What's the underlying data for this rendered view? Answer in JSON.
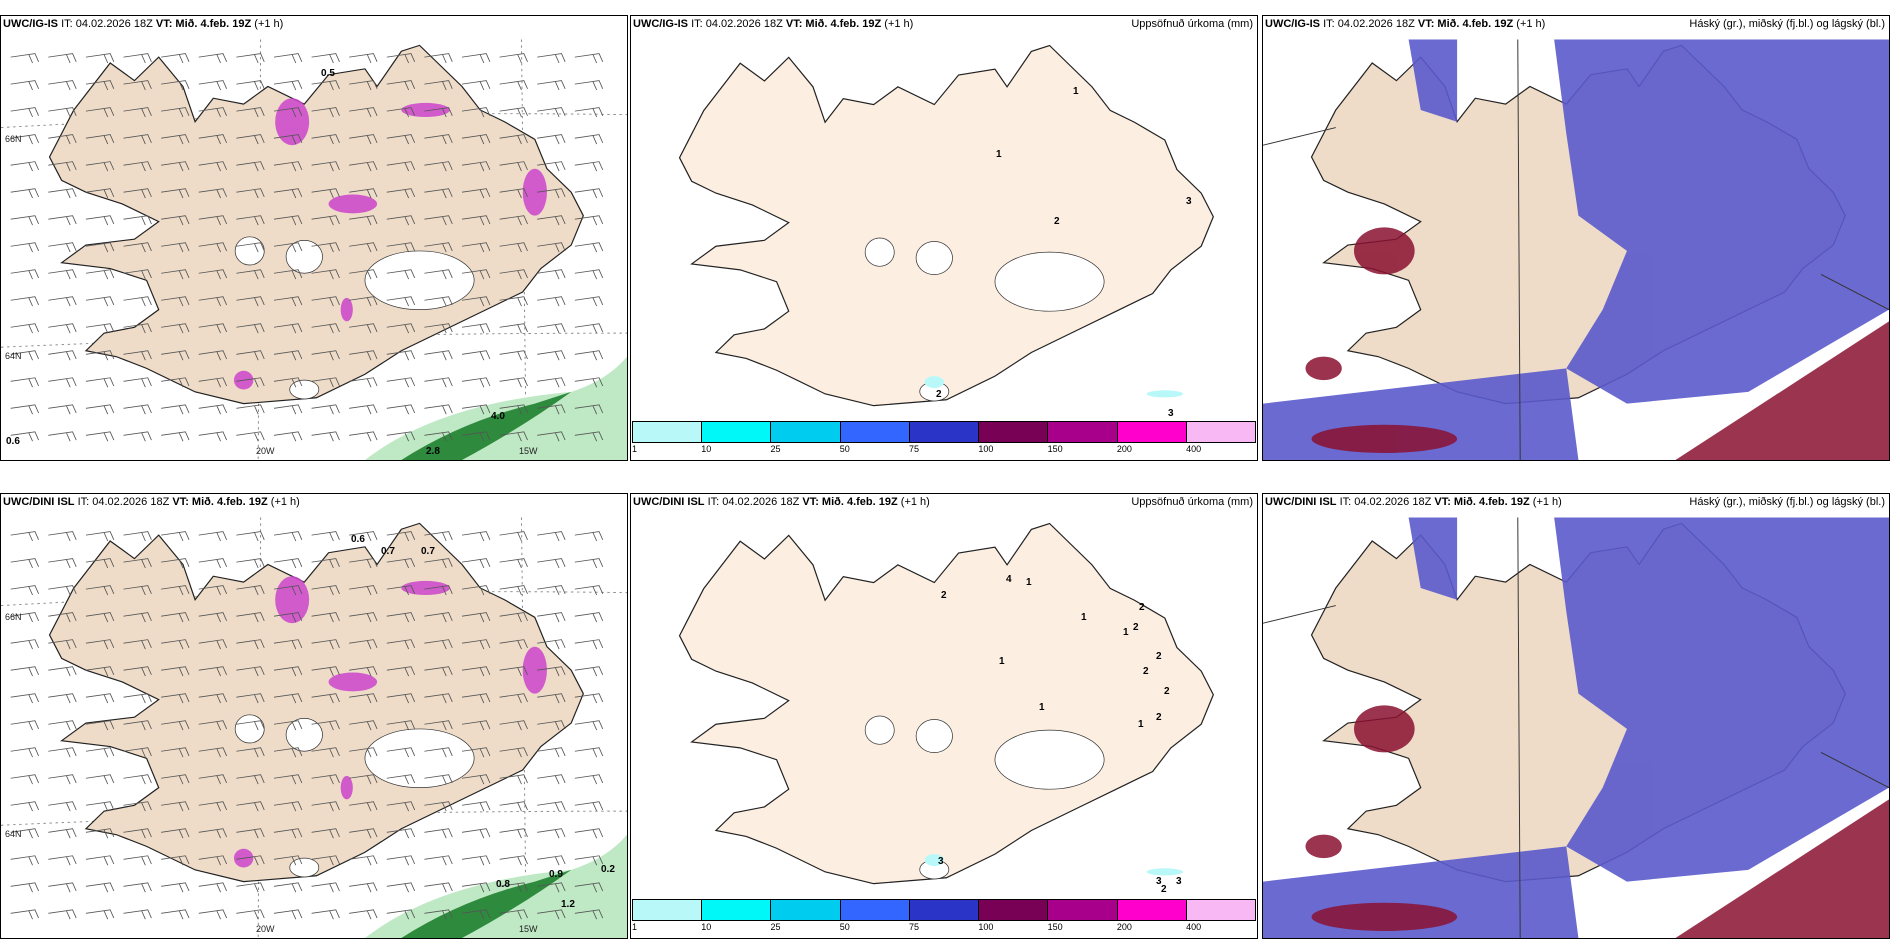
{
  "panels": [
    {
      "model": "UWC/IG-IS",
      "it": "IT: 04.02.2026 18Z",
      "vt_label": "VT:",
      "vt": "Mið. 4.feb. 19Z",
      "lead": "(+1 h)",
      "right_title": "",
      "contour_labels": [
        "0.5",
        "0.6",
        "4.0",
        "2.8"
      ],
      "axis_labels": [
        "66N",
        "64N",
        "20W",
        "15W"
      ]
    },
    {
      "model": "UWC/IG-IS",
      "it": "IT: 04.02.2026 18Z",
      "vt_label": "VT:",
      "vt": "Mið. 4.feb. 19Z",
      "lead": "(+1 h)",
      "right_title": "Uppsöfnuð úrkoma (mm)",
      "value_labels": [
        "1",
        "1",
        "3",
        "2",
        "2",
        "3"
      ]
    },
    {
      "model": "UWC/IG-IS",
      "it": "IT: 04.02.2026 18Z",
      "vt_label": "VT:",
      "vt": "Mið. 4.feb. 19Z",
      "lead": "(+1 h)",
      "right_title": "Háský (gr.), miðský (fj.bl.) og lágský (bl.)"
    },
    {
      "model": "UWC/DINI ISL",
      "it": "IT: 04.02.2026 18Z",
      "vt_label": "VT:",
      "vt": "Mið. 4.feb. 19Z",
      "lead": "(+1 h)",
      "right_title": "",
      "contour_labels": [
        "0.6",
        "0.7",
        "0.7",
        "0.8",
        "0.9",
        "1.2",
        "0.2"
      ],
      "axis_labels": [
        "66N",
        "64N",
        "20W",
        "15W"
      ]
    },
    {
      "model": "UWC/DINI ISL",
      "it": "IT: 04.02.2026 18Z",
      "vt_label": "VT:",
      "vt": "Mið. 4.feb. 19Z",
      "lead": "(+1 h)",
      "right_title": "Uppsöfnuð úrkoma (mm)",
      "value_labels": [
        "4",
        "1",
        "2",
        "1",
        "2",
        "2",
        "1",
        "2",
        "1",
        "2",
        "1",
        "2",
        "2",
        "1",
        "3",
        "3",
        "3",
        "2"
      ]
    },
    {
      "model": "UWC/DINI ISL",
      "it": "IT: 04.02.2026 18Z",
      "vt_label": "VT:",
      "vt": "Mið. 4.feb. 19Z",
      "lead": "(+1 h)",
      "right_title": "Háský (gr.), miðský (fj.bl.) og lágský (bl.)"
    }
  ],
  "colorbar": {
    "ticks": [
      "1",
      "10",
      "25",
      "50",
      "75",
      "100",
      "150",
      "200",
      "400"
    ],
    "colors": [
      "#b8f8f8",
      "#00f8f8",
      "#00ccf0",
      "#3366ff",
      "#2a35c8",
      "#780055",
      "#a8008a",
      "#ff00cc",
      "#f8b8f4"
    ]
  },
  "colors": {
    "land": "#eedcc8",
    "land_precip": "#fcefe2",
    "cloud_low": "#5a5acc",
    "cloud_high": "#8a1030",
    "precip_green": "#2e8b3e",
    "precip_magenta": "#cc44cc"
  }
}
